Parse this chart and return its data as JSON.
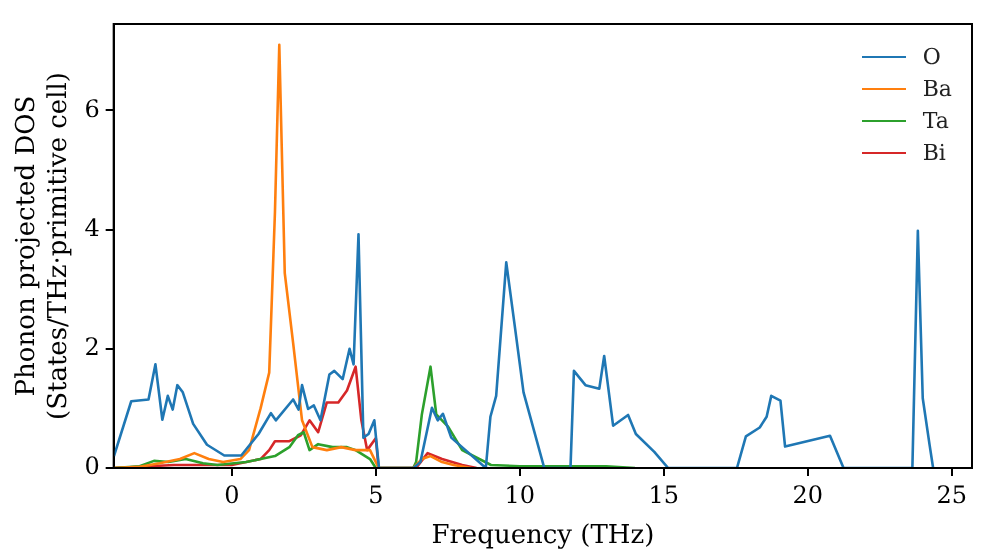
{
  "chart_data": {
    "type": "line",
    "xlabel": "Frequency (THz)",
    "ylabel": "Phonon projected DOS\n(States/THz·primitive cell)",
    "xlim": [
      -4.1,
      25.7
    ],
    "ylim": [
      0,
      7.45
    ],
    "xticks": [
      0,
      5,
      10,
      15,
      20,
      25
    ],
    "yticks": [
      0,
      2,
      4,
      6
    ],
    "grid": false,
    "legend": "top right",
    "marker": "none",
    "line_style": "solid",
    "series": [
      {
        "name": "O",
        "color": "#1f77b4",
        "x": [
          -4.09,
          -3.49,
          -2.89,
          -2.65,
          -2.41,
          -2.22,
          -2.05,
          -1.89,
          -1.7,
          -1.34,
          -0.86,
          -0.26,
          0.33,
          0.93,
          1.36,
          1.53,
          2.13,
          2.32,
          2.44,
          2.65,
          2.85,
          3.08,
          3.39,
          3.56,
          3.85,
          4.09,
          4.23,
          4.4,
          4.57,
          4.75,
          4.95,
          5.11,
          6.31,
          6.55,
          6.95,
          7.15,
          7.33,
          7.62,
          8.82,
          8.98,
          9.18,
          9.53,
          9.84,
          10.13,
          10.85,
          11.76,
          11.88,
          12.28,
          12.76,
          12.93,
          13.24,
          13.76,
          14.03,
          14.67,
          15.15,
          17.54,
          17.85,
          18.33,
          18.57,
          18.73,
          19.05,
          19.21,
          20.77,
          21.24,
          23.63,
          23.82,
          23.99,
          24.23,
          24.35
        ],
        "values": [
          0.2,
          1.12,
          1.15,
          1.74,
          0.81,
          1.21,
          0.98,
          1.39,
          1.27,
          0.74,
          0.39,
          0.21,
          0.21,
          0.57,
          0.92,
          0.8,
          1.15,
          0.98,
          1.39,
          0.99,
          1.05,
          0.8,
          1.57,
          1.63,
          1.49,
          2.0,
          1.74,
          3.92,
          0.51,
          0.57,
          0.8,
          0,
          0,
          0.1,
          1.01,
          0.8,
          0.91,
          0.51,
          0,
          0.86,
          1.21,
          3.45,
          2.33,
          1.27,
          0,
          0,
          1.63,
          1.39,
          1.33,
          1.88,
          0.71,
          0.89,
          0.57,
          0.27,
          0,
          0,
          0.53,
          0.68,
          0.86,
          1.21,
          1.13,
          0.36,
          0.54,
          0,
          0,
          3.98,
          1.17,
          0.38,
          0
        ]
      },
      {
        "name": "Ba",
        "color": "#ff7f0e",
        "x": [
          -4.09,
          -3.2,
          -2.5,
          -1.8,
          -1.3,
          -0.8,
          -0.3,
          0.3,
          0.6,
          1.0,
          1.3,
          1.5,
          1.65,
          1.84,
          2.13,
          2.44,
          2.8,
          3.3,
          3.8,
          4.3,
          4.8,
          5.1,
          6.3,
          6.6,
          6.9,
          7.3,
          7.7,
          8.3
        ],
        "values": [
          0,
          0.02,
          0.08,
          0.15,
          0.25,
          0.15,
          0.1,
          0.15,
          0.3,
          1.0,
          1.6,
          4.3,
          7.1,
          3.27,
          2.1,
          0.8,
          0.35,
          0.3,
          0.35,
          0.3,
          0.3,
          0,
          0,
          0.15,
          0.2,
          0.1,
          0.05,
          0
        ]
      },
      {
        "name": "Ta",
        "color": "#2ca02c",
        "x": [
          -4.09,
          -3.2,
          -2.7,
          -2.2,
          -1.6,
          -1.0,
          -0.5,
          0.5,
          1.0,
          1.5,
          2.0,
          2.3,
          2.5,
          2.7,
          3.0,
          3.5,
          4.0,
          4.3,
          4.8,
          5.0,
          6.3,
          6.4,
          6.6,
          6.9,
          7.1,
          7.5,
          8.0,
          9.0,
          10.0,
          12.0,
          13.0,
          14.0
        ],
        "values": [
          0,
          0.03,
          0.12,
          0.1,
          0.15,
          0.08,
          0.05,
          0.1,
          0.15,
          0.2,
          0.35,
          0.55,
          0.6,
          0.3,
          0.4,
          0.35,
          0.35,
          0.3,
          0.15,
          0,
          0,
          0.1,
          0.9,
          1.7,
          0.9,
          0.7,
          0.3,
          0.05,
          0.03,
          0.03,
          0.03,
          0
        ]
      },
      {
        "name": "Bi",
        "color": "#d62728",
        "x": [
          -4.09,
          -2.0,
          -1.0,
          0.0,
          1.0,
          1.3,
          1.5,
          2.0,
          2.4,
          2.7,
          3.0,
          3.3,
          3.7,
          4.0,
          4.3,
          4.5,
          4.7,
          5.0,
          5.1,
          6.4,
          6.8,
          7.3,
          8.0,
          8.5
        ],
        "values": [
          0,
          0.05,
          0.05,
          0.05,
          0.15,
          0.3,
          0.45,
          0.45,
          0.55,
          0.8,
          0.6,
          1.1,
          1.1,
          1.3,
          1.7,
          0.8,
          0.3,
          0.5,
          0,
          0,
          0.25,
          0.15,
          0.05,
          0
        ]
      }
    ]
  }
}
